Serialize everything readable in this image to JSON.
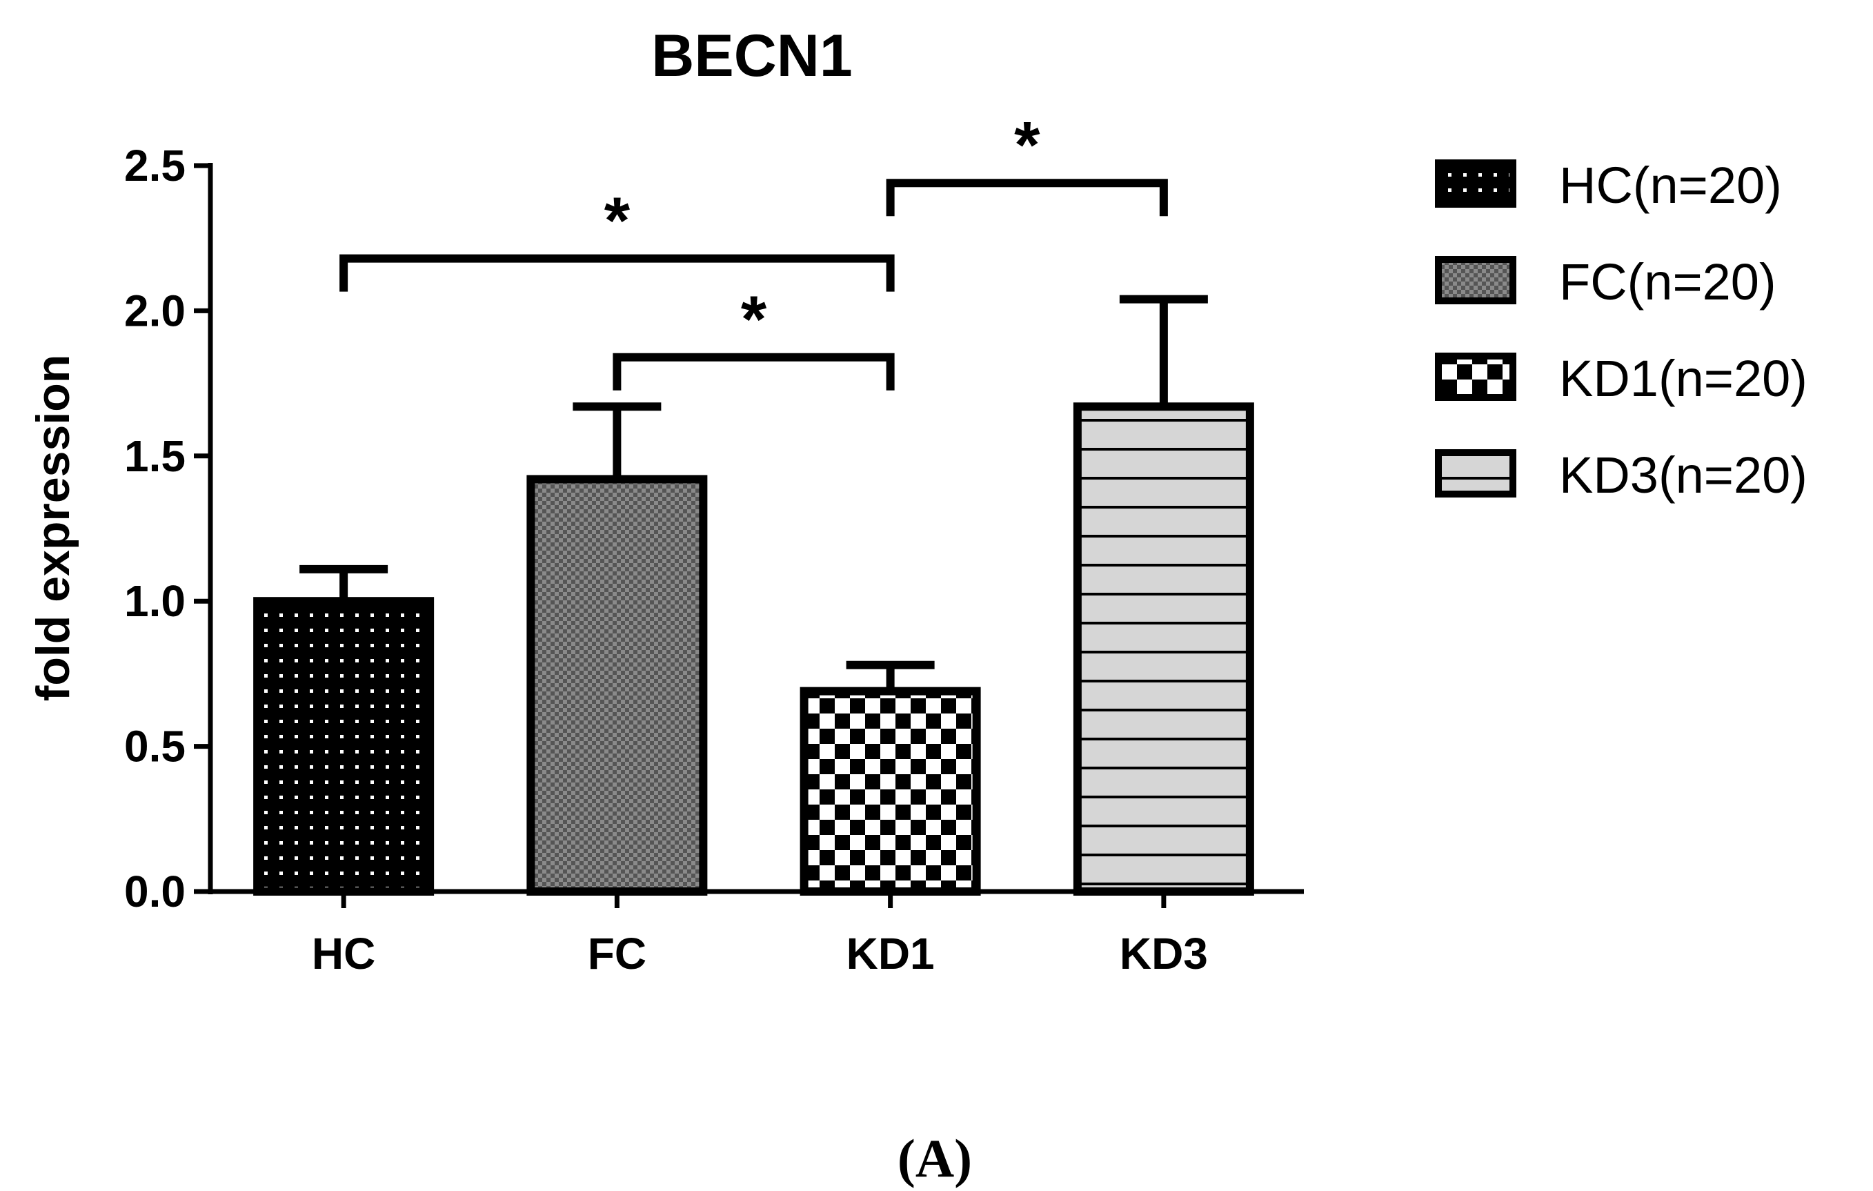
{
  "panel_label": "(A)",
  "chart_data": {
    "type": "bar",
    "title": "BECN1",
    "xlabel": "",
    "ylabel": "fold expression",
    "ylim": [
      0,
      2.5
    ],
    "yticks": [
      "0.0",
      "0.5",
      "1.0",
      "1.5",
      "2.0",
      "2.5"
    ],
    "yticks_values": [
      0,
      0.5,
      1.0,
      1.5,
      2.0,
      2.5
    ],
    "categories": [
      "HC",
      "FC",
      "KD1",
      "KD3"
    ],
    "values": [
      1.0,
      1.42,
      0.69,
      1.67
    ],
    "error_upper": [
      0.11,
      0.25,
      0.09,
      0.37
    ],
    "patterns": [
      "dots",
      "fine-checker",
      "checker",
      "horizontal-lines"
    ],
    "legend": {
      "position": "right",
      "entries": [
        "HC(n=20)",
        "FC(n=20)",
        "KD1(n=20)",
        "KD3(n=20)"
      ]
    },
    "significance": [
      {
        "from": "HC",
        "to": "KD1",
        "label": "*"
      },
      {
        "from": "FC",
        "to": "KD1",
        "label": "*"
      },
      {
        "from": "KD1",
        "to": "KD3",
        "label": "*"
      }
    ],
    "grid": false
  }
}
